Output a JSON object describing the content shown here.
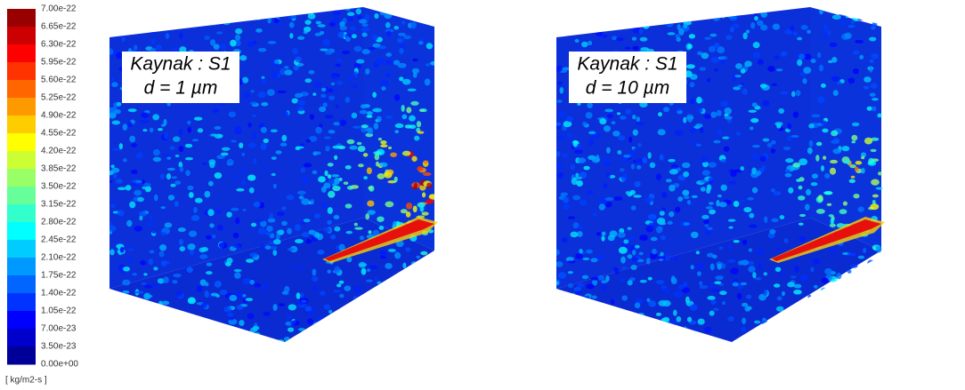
{
  "colorbar": {
    "labels": [
      "7.00e-22",
      "6.65e-22",
      "6.30e-22",
      "5.95e-22",
      "5.60e-22",
      "5.25e-22",
      "4.90e-22",
      "4.55e-22",
      "4.20e-22",
      "3.85e-22",
      "3.50e-22",
      "3.15e-22",
      "2.80e-22",
      "2.45e-22",
      "2.10e-22",
      "1.75e-22",
      "1.40e-22",
      "1.05e-22",
      "7.00e-23",
      "3.50e-23",
      "0.00e+00"
    ],
    "unit": "[ kg/m2-s ]"
  },
  "panels": [
    {
      "label": "Kaynak : S1",
      "diameter": "d = 1 µm"
    },
    {
      "label": "Kaynak : S1",
      "diameter": "d = 10 µm"
    }
  ]
}
